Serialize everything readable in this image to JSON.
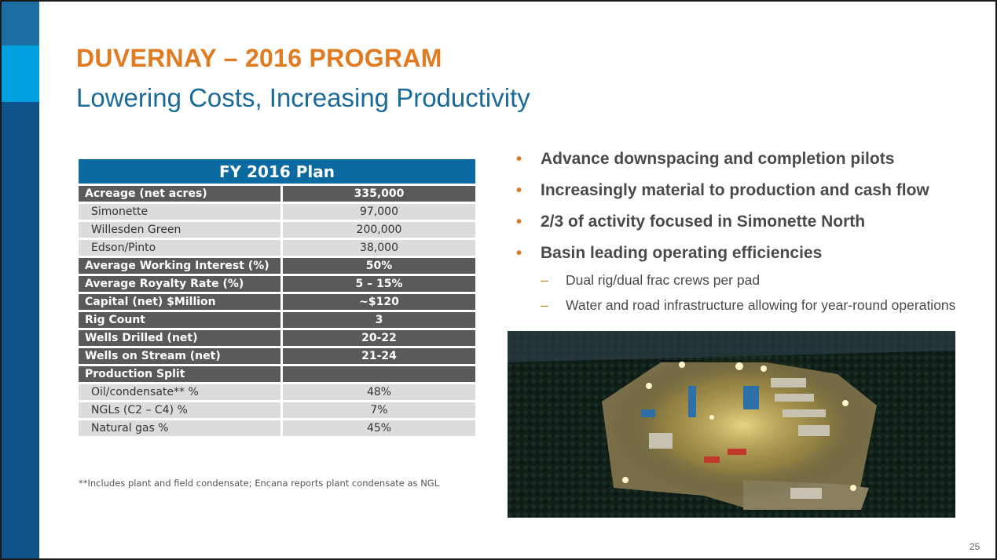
{
  "slide": {
    "title": "DUVERNAY – 2016 PROGRAM",
    "subtitle": "Lowering Costs, Increasing Productivity",
    "page_number": "25"
  },
  "table": {
    "header": "FY 2016 Plan",
    "rows": [
      {
        "label": "Acreage (net acres)",
        "value": "335,000",
        "style": "dark"
      },
      {
        "label": "Simonette",
        "value": "97,000",
        "style": "light"
      },
      {
        "label": "Willesden Green",
        "value": "200,000",
        "style": "light"
      },
      {
        "label": "Edson/Pinto",
        "value": "38,000",
        "style": "light"
      },
      {
        "label": "Average Working Interest (%)",
        "value": "50%",
        "style": "dark"
      },
      {
        "label": "Average Royalty Rate (%)",
        "value": "5 – 15%",
        "style": "dark"
      },
      {
        "label": "Capital (net) $Million",
        "value": "~$120",
        "style": "dark"
      },
      {
        "label": "Rig Count",
        "value": "3",
        "style": "dark"
      },
      {
        "label": "Wells Drilled (net)",
        "value": "20-22",
        "style": "dark"
      },
      {
        "label": "Wells on Stream (net)",
        "value": "21-24",
        "style": "dark"
      },
      {
        "label": "Production Split",
        "value": "",
        "style": "dark"
      },
      {
        "label": "Oil/condensate** %",
        "value": "48%",
        "style": "light"
      },
      {
        "label": "NGLs (C2 – C4) %",
        "value": "7%",
        "style": "light"
      },
      {
        "label": "Natural gas %",
        "value": "45%",
        "style": "light"
      }
    ],
    "footnote": "**Includes plant and field condensate; Encana reports plant condensate as NGL"
  },
  "bullets": [
    "Advance downspacing and completion pilots",
    "Increasingly material to production and cash flow",
    "2/3 of activity focused in Simonette North",
    "Basin leading operating efficiencies"
  ],
  "sub_bullets": [
    "Dual rig/dual frac crews per pad",
    "Water and road infrastructure allowing for year-round operations"
  ],
  "colors": {
    "accent_orange": "#e07b22",
    "brand_blue": "#0b6aa0",
    "dark_row": "#5a5a5a",
    "light_row": "#dcdcdc"
  }
}
